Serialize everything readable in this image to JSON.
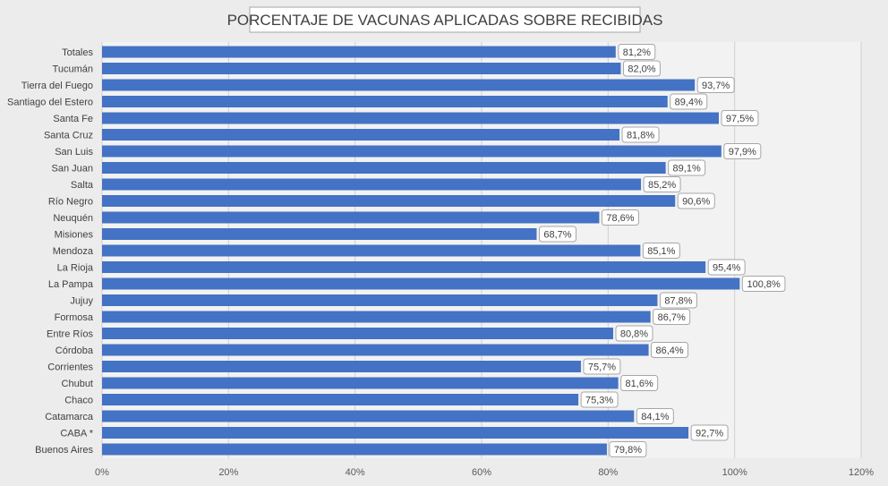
{
  "chart_data": {
    "type": "bar",
    "orientation": "horizontal",
    "title": "PORCENTAJE DE VACUNAS APLICADAS SOBRE RECIBIDAS",
    "categories": [
      "Totales",
      "Tucumán",
      "Tierra del Fuego",
      "Santiago del Estero",
      "Santa Fe",
      "Santa Cruz",
      "San Luis",
      "San Juan",
      "Salta",
      "Río Negro",
      "Neuquén",
      "Misiones",
      "Mendoza",
      "La Rioja",
      "La Pampa",
      "Jujuy",
      "Formosa",
      "Entre Ríos",
      "Córdoba",
      "Corrientes",
      "Chubut",
      "Chaco",
      "Catamarca",
      "CABA *",
      "Buenos Aires"
    ],
    "values": [
      81.2,
      82.0,
      93.7,
      89.4,
      97.5,
      81.8,
      97.9,
      89.1,
      85.2,
      90.6,
      78.6,
      68.7,
      85.1,
      95.4,
      100.8,
      87.8,
      86.7,
      80.8,
      86.4,
      75.7,
      81.6,
      75.3,
      84.1,
      92.7,
      79.8
    ],
    "value_labels": [
      "81,2%",
      "82,0%",
      "93,7%",
      "89,4%",
      "97,5%",
      "81,8%",
      "97,9%",
      "89,1%",
      "85,2%",
      "90,6%",
      "78,6%",
      "68,7%",
      "85,1%",
      "95,4%",
      "100,8%",
      "87,8%",
      "86,7%",
      "80,8%",
      "86,4%",
      "75,7%",
      "81,6%",
      "75,3%",
      "84,1%",
      "92,7%",
      "79,8%"
    ],
    "x_ticks": [
      "0%",
      "20%",
      "40%",
      "60%",
      "80%",
      "100%",
      "120%"
    ],
    "xlim": [
      0,
      120
    ],
    "grid": true,
    "colors": {
      "bar": "#4472c4",
      "plot_bg": "#f2f2f2",
      "page_bg": "#ececec"
    }
  }
}
